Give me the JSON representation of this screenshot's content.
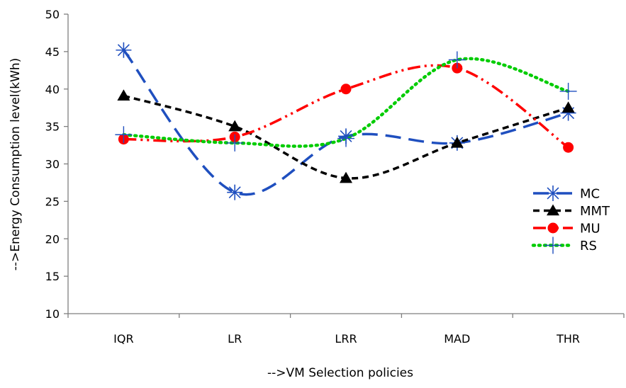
{
  "chart_data": {
    "type": "line",
    "title": "",
    "xlabel": "-->VM Selection policies",
    "ylabel": "-->Energy Consumption level(kWh)",
    "categories": [
      "IQR",
      "LR",
      "LRR",
      "MAD",
      "THR"
    ],
    "ylim": [
      10,
      50
    ],
    "yticks": [
      10,
      15,
      20,
      25,
      30,
      35,
      40,
      45,
      50
    ],
    "grid": false,
    "smooth": true,
    "legend_position": "right",
    "series": [
      {
        "name": "MC",
        "values": [
          45.2,
          26.2,
          33.7,
          32.8,
          36.8
        ],
        "color": "#1f4fbf",
        "dash": "long-dash",
        "marker": "asterisk"
      },
      {
        "name": "MMT",
        "values": [
          39.1,
          35.0,
          28.1,
          32.8,
          37.5
        ],
        "color": "#000000",
        "dash": "short-dash",
        "marker": "triangle"
      },
      {
        "name": "MU",
        "values": [
          33.3,
          33.6,
          40.0,
          42.8,
          32.2
        ],
        "color": "#ff0000",
        "dash": "dash-dot-dot",
        "marker": "circle"
      },
      {
        "name": "RS",
        "values": [
          33.9,
          32.8,
          33.4,
          43.9,
          39.7
        ],
        "color": "#00cc00",
        "dash": "dotted",
        "marker": "plus"
      }
    ]
  }
}
